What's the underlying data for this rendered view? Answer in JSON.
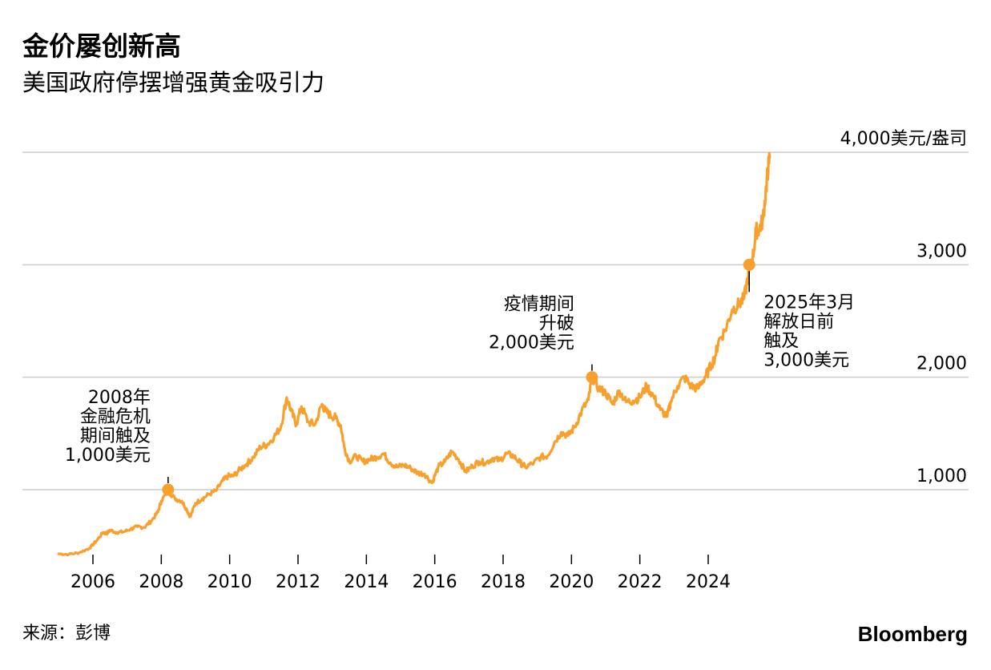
{
  "title": "金价屡创新高",
  "subtitle": "美国政府停摆增强黄金吸引力",
  "source": "来源：彭博",
  "brand": "Bloomberg",
  "chart_data": {
    "type": "line",
    "title": "金价屡创新高",
    "subtitle": "美国政府停摆增强黄金吸引力",
    "xlabel": "",
    "ylabel": "美元/盎司",
    "xlim": [
      2004.9,
      2026.0
    ],
    "ylim": [
      400,
      4000
    ],
    "grid": true,
    "y_ticks": [
      {
        "value": 1000,
        "label": "1,000"
      },
      {
        "value": 2000,
        "label": "2,000"
      },
      {
        "value": 3000,
        "label": "3,000"
      },
      {
        "value": 4000,
        "label": "4,000美元/盎司"
      }
    ],
    "x_ticks": [
      {
        "value": 2006,
        "label": "2006"
      },
      {
        "value": 2008,
        "label": "2008"
      },
      {
        "value": 2010,
        "label": "2010"
      },
      {
        "value": 2012,
        "label": "2012"
      },
      {
        "value": 2014,
        "label": "2014"
      },
      {
        "value": 2016,
        "label": "2016"
      },
      {
        "value": 2018,
        "label": "2018"
      },
      {
        "value": 2020,
        "label": "2020"
      },
      {
        "value": 2022,
        "label": "2022"
      },
      {
        "value": 2024,
        "label": "2024"
      }
    ],
    "series": [
      {
        "name": "金价",
        "color": "#f7a02e",
        "x": [
          2005.0,
          2005.3,
          2005.6,
          2005.9,
          2006.1,
          2006.3,
          2006.4,
          2006.5,
          2006.7,
          2006.9,
          2007.1,
          2007.3,
          2007.5,
          2007.7,
          2007.9,
          2008.0,
          2008.2,
          2008.4,
          2008.6,
          2008.75,
          2008.85,
          2009.0,
          2009.2,
          2009.4,
          2009.6,
          2009.8,
          2009.95,
          2010.1,
          2010.3,
          2010.5,
          2010.7,
          2010.9,
          2011.1,
          2011.3,
          2011.5,
          2011.67,
          2011.8,
          2011.95,
          2012.1,
          2012.3,
          2012.5,
          2012.7,
          2012.8,
          2012.95,
          2013.1,
          2013.25,
          2013.35,
          2013.5,
          2013.7,
          2013.9,
          2014.1,
          2014.3,
          2014.5,
          2014.7,
          2014.9,
          2015.1,
          2015.3,
          2015.5,
          2015.7,
          2015.92,
          2016.1,
          2016.3,
          2016.5,
          2016.7,
          2016.9,
          2017.1,
          2017.3,
          2017.5,
          2017.7,
          2017.9,
          2018.1,
          2018.3,
          2018.5,
          2018.65,
          2018.9,
          2019.1,
          2019.3,
          2019.5,
          2019.7,
          2019.9,
          2020.1,
          2020.3,
          2020.5,
          2020.6,
          2020.8,
          2021.0,
          2021.2,
          2021.4,
          2021.6,
          2021.8,
          2022.0,
          2022.2,
          2022.4,
          2022.6,
          2022.8,
          2022.9,
          2023.1,
          2023.3,
          2023.5,
          2023.7,
          2023.9,
          2024.0,
          2024.2,
          2024.3,
          2024.5,
          2024.7,
          2024.9,
          2025.05,
          2025.2,
          2025.3,
          2025.4,
          2025.5,
          2025.6,
          2025.7,
          2025.75,
          2025.8
        ],
        "values": [
          430,
          425,
          440,
          480,
          545,
          620,
          610,
          640,
          620,
          625,
          650,
          670,
          665,
          720,
          800,
          900,
          990,
          920,
          900,
          820,
          760,
          880,
          920,
          960,
          990,
          1080,
          1120,
          1120,
          1180,
          1230,
          1290,
          1380,
          1400,
          1470,
          1560,
          1820,
          1700,
          1580,
          1740,
          1600,
          1580,
          1760,
          1700,
          1660,
          1640,
          1570,
          1380,
          1250,
          1300,
          1250,
          1270,
          1290,
          1320,
          1240,
          1200,
          1220,
          1190,
          1150,
          1140,
          1060,
          1200,
          1250,
          1340,
          1270,
          1160,
          1210,
          1250,
          1240,
          1280,
          1260,
          1320,
          1300,
          1240,
          1200,
          1240,
          1290,
          1300,
          1420,
          1510,
          1480,
          1560,
          1700,
          1800,
          2000,
          1900,
          1860,
          1760,
          1880,
          1780,
          1790,
          1820,
          1920,
          1830,
          1710,
          1650,
          1780,
          1920,
          2000,
          1920,
          1900,
          2000,
          2050,
          2180,
          2320,
          2420,
          2600,
          2650,
          2700,
          2950,
          3050,
          3300,
          3320,
          3400,
          3700,
          3850,
          3970
        ]
      }
    ],
    "markers": [
      {
        "x": 2008.2,
        "y": 1000
      },
      {
        "x": 2020.6,
        "y": 2000
      },
      {
        "x": 2025.2,
        "y": 3000
      }
    ],
    "annotations": [
      {
        "lines": [
          "2008年",
          "金融危机",
          "期间触及",
          "1,000美元"
        ],
        "x": 2008.2,
        "y": 1000,
        "anchor": "end"
      },
      {
        "lines": [
          "疫情期间",
          "升破",
          "2,000美元"
        ],
        "x": 2020.6,
        "y": 2000,
        "anchor": "end"
      },
      {
        "lines": [
          "2025年3月",
          "解放日前",
          "触及",
          "3,000美元"
        ],
        "x": 2025.2,
        "y": 3000,
        "anchor": "start"
      }
    ]
  }
}
